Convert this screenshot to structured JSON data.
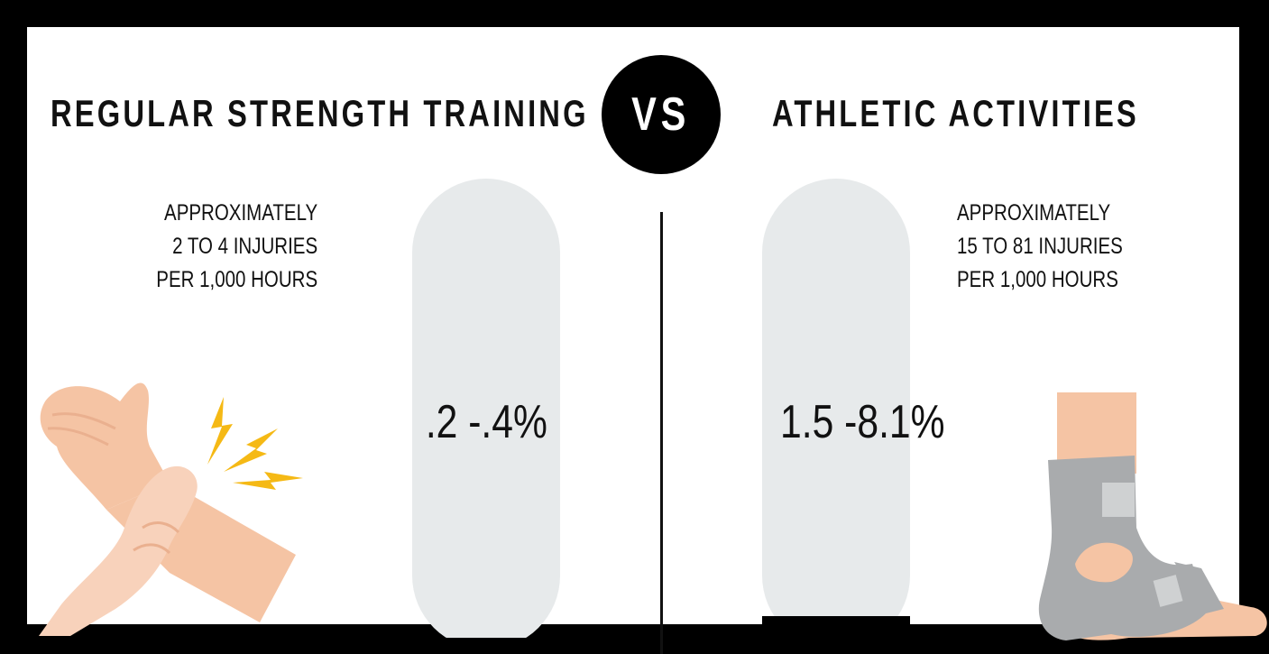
{
  "header": {
    "left_title": "REGULAR STRENGTH TRAINING",
    "vs_label": "VS",
    "right_title": "ATHLETIC ACTIVITIES"
  },
  "left": {
    "description_lines": [
      "APPROXIMATELY",
      "2 TO 4 INJURIES",
      "PER 1,000 HOURS"
    ],
    "value_label": ".2 -.4%",
    "fill_fraction": 0.025,
    "illustration": "wrist-pain-icon"
  },
  "right": {
    "description_lines": [
      "APPROXIMATELY",
      "15 TO 81 INJURIES",
      "PER 1,000 HOURS"
    ],
    "value_label": "1.5 -8.1%",
    "fill_fraction": 0.07,
    "illustration": "ankle-brace-icon"
  },
  "colors": {
    "pill_background": "#e7eaeb",
    "fill": "#000000",
    "skin": "#f5c4a4",
    "brace": "#a9abad",
    "lightning": "#f5b915"
  }
}
